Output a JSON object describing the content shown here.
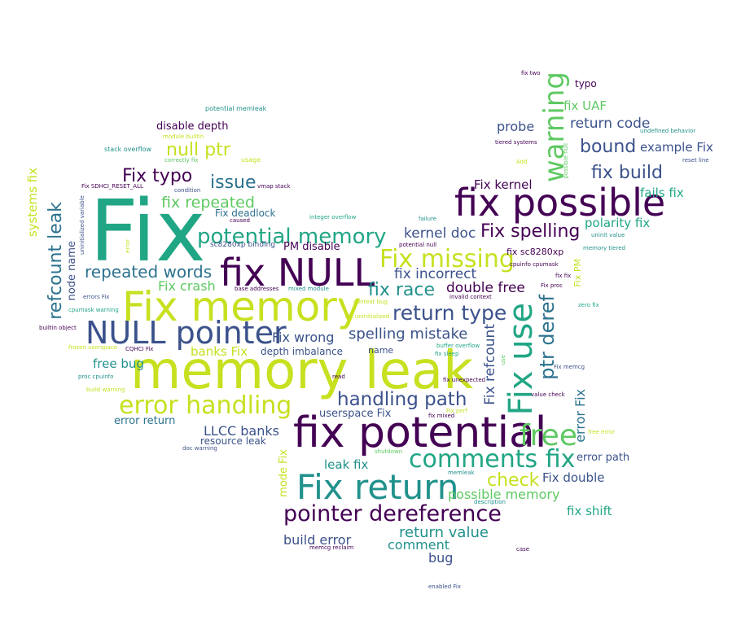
{
  "palette": [
    "#440154",
    "#3b528b",
    "#21918c",
    "#5ec962",
    "#c7e020"
  ],
  "cloud": {
    "words": [
      {
        "text": "Fix",
        "color": "#21a685"
      },
      {
        "text": "memory leak",
        "color": "#c7e020"
      },
      {
        "text": "fix possible",
        "color": "#440154"
      },
      {
        "text": "fix potential",
        "color": "#440154"
      },
      {
        "text": "Fix memory",
        "color": "#c7e020"
      },
      {
        "text": "fix NULL",
        "color": "#440154"
      },
      {
        "text": "NULL pointer",
        "color": "#3b528b"
      },
      {
        "text": "Fix return",
        "color": "#21918c"
      },
      {
        "text": "Fix use",
        "color": "#21a685"
      },
      {
        "text": "warning",
        "color": "#5ec962"
      },
      {
        "text": "error handling",
        "color": "#c7e020"
      },
      {
        "text": "pointer dereference",
        "color": "#440154"
      },
      {
        "text": "Fix missing",
        "color": "#c7e020"
      },
      {
        "text": "potential memory",
        "color": "#21a685"
      },
      {
        "text": "comments fix",
        "color": "#21a685"
      },
      {
        "text": "free",
        "color": "#5ec962"
      },
      {
        "text": "return type",
        "color": "#3b528b"
      },
      {
        "text": "handling path",
        "color": "#3b528b"
      },
      {
        "text": "ptr deref",
        "color": "#2c728e"
      },
      {
        "text": "refcount leak",
        "color": "#2c728e"
      },
      {
        "text": "Fix spelling",
        "color": "#440154"
      },
      {
        "text": "fix race",
        "color": "#21918c"
      },
      {
        "text": "repeated words",
        "color": "#2c728e"
      },
      {
        "text": "null ptr",
        "color": "#c7e020"
      },
      {
        "text": "Fix typo",
        "color": "#440154"
      },
      {
        "text": "bound",
        "color": "#3b528b"
      },
      {
        "text": "fix build",
        "color": "#3b528b"
      },
      {
        "text": "issue",
        "color": "#2c728e"
      },
      {
        "text": "fix repeated",
        "color": "#5ec962"
      },
      {
        "text": "check",
        "color": "#c7e020"
      },
      {
        "text": "spelling mistake",
        "color": "#3b528b"
      },
      {
        "text": "double free",
        "color": "#440154"
      },
      {
        "text": "fix incorrect",
        "color": "#3b528b"
      },
      {
        "text": "kernel doc",
        "color": "#3b528b"
      },
      {
        "text": "Fix refcount",
        "color": "#3b528b"
      },
      {
        "text": "error Fix",
        "color": "#2c728e"
      },
      {
        "text": "return value",
        "color": "#21918c"
      },
      {
        "text": "return code",
        "color": "#3b528b"
      },
      {
        "text": "example Fix",
        "color": "#3b528b"
      },
      {
        "text": "Fix crash",
        "color": "#5ec962"
      },
      {
        "text": "Fix wrong",
        "color": "#3b528b"
      },
      {
        "text": "probe",
        "color": "#3b528b"
      },
      {
        "text": "fix UAF",
        "color": "#5ec962"
      },
      {
        "text": "Fix kernel",
        "color": "#440154"
      },
      {
        "text": "fails fix",
        "color": "#21a685"
      },
      {
        "text": "polarity fix",
        "color": "#21a685"
      },
      {
        "text": "Fix double",
        "color": "#3b528b"
      },
      {
        "text": "possible memory",
        "color": "#5ec962"
      },
      {
        "text": "build error",
        "color": "#3b528b"
      },
      {
        "text": "comment",
        "color": "#21918c"
      },
      {
        "text": "bug",
        "color": "#3b528b"
      },
      {
        "text": "fix shift",
        "color": "#21a685"
      },
      {
        "text": "LLCC banks",
        "color": "#3b528b"
      },
      {
        "text": "free bug",
        "color": "#21918c"
      },
      {
        "text": "banks Fix",
        "color": "#c7e020"
      },
      {
        "text": "disable depth",
        "color": "#440154"
      },
      {
        "text": "leak fix",
        "color": "#21918c"
      },
      {
        "text": "userspace Fix",
        "color": "#3b528b"
      },
      {
        "text": "error return",
        "color": "#2c728e"
      },
      {
        "text": "error path",
        "color": "#3b528b"
      },
      {
        "text": "typo",
        "color": "#440154"
      },
      {
        "text": "systems fix",
        "color": "#c7e020"
      },
      {
        "text": "node name",
        "color": "#3b528b"
      },
      {
        "text": "mode Fix",
        "color": "#c7e020"
      },
      {
        "text": "PM disable",
        "color": "#440154"
      },
      {
        "text": "depth imbalance",
        "color": "#3b528b"
      },
      {
        "text": "Fix deadlock",
        "color": "#2c728e"
      },
      {
        "text": "resource leak",
        "color": "#3b528b"
      },
      {
        "text": "fix sc8280xp",
        "color": "#440154"
      },
      {
        "text": "name",
        "color": "#3b528b"
      },
      {
        "text": "Fix PM",
        "color": "#c7e020"
      },
      {
        "text": "potential memleak",
        "color": "#21918c"
      },
      {
        "text": "module builtin",
        "color": "#c7e020"
      },
      {
        "text": "stack overflow",
        "color": "#21918c"
      },
      {
        "text": "correctly fix",
        "color": "#5ec962"
      },
      {
        "text": "usage",
        "color": "#c7e020"
      },
      {
        "text": "condition",
        "color": "#3b528b"
      },
      {
        "text": "vmap stack",
        "color": "#440154"
      },
      {
        "text": "Fix SDHCI_RESET_ALL",
        "color": "#440154"
      },
      {
        "text": "uninitialized variable",
        "color": "#3b528b"
      },
      {
        "text": "caused",
        "color": "#440154"
      },
      {
        "text": "integer overflow",
        "color": "#21a685"
      },
      {
        "text": "failure",
        "color": "#21918c"
      },
      {
        "text": "potential null",
        "color": "#440154"
      },
      {
        "text": "sc8280xp binding",
        "color": "#3b528b"
      },
      {
        "text": "base addresses",
        "color": "#440154"
      },
      {
        "text": "mixed module",
        "color": "#21918c"
      },
      {
        "text": "errors Fix",
        "color": "#3b528b"
      },
      {
        "text": "cpumask warning",
        "color": "#21a685"
      },
      {
        "text": "builtin object",
        "color": "#440154"
      },
      {
        "text": "error",
        "color": "#c7e020"
      },
      {
        "text": "context bug",
        "color": "#c7e020"
      },
      {
        "text": "Fix uninitialized",
        "color": "#c7e020"
      },
      {
        "text": "invalid context",
        "color": "#440154"
      },
      {
        "text": "frozen userspace",
        "color": "#c7e020"
      },
      {
        "text": "CQHCI Fix",
        "color": "#440154"
      },
      {
        "text": "buffer overflow",
        "color": "#21a685"
      },
      {
        "text": "fix sleep",
        "color": "#21a685"
      },
      {
        "text": "use",
        "color": "#5ec962"
      },
      {
        "text": "proc cpuinfo",
        "color": "#21918c"
      },
      {
        "text": "build warning",
        "color": "#c7e020"
      },
      {
        "text": "read",
        "color": "#440154"
      },
      {
        "text": "fix unexpected",
        "color": "#440154"
      },
      {
        "text": "Fix perf",
        "color": "#c7e020"
      },
      {
        "text": "fix mixed",
        "color": "#440154"
      },
      {
        "text": "doc warning",
        "color": "#3b528b"
      },
      {
        "text": "shutdown",
        "color": "#5ec962"
      },
      {
        "text": "memleak",
        "color": "#21918c"
      },
      {
        "text": "description",
        "color": "#21918c"
      },
      {
        "text": "memcg reclaim",
        "color": "#440154"
      },
      {
        "text": "case",
        "color": "#440154"
      },
      {
        "text": "enabled Fix",
        "color": "#3b528b"
      },
      {
        "text": "fix two",
        "color": "#440154"
      },
      {
        "text": "undefined behavior",
        "color": "#21918c"
      },
      {
        "text": "reset line",
        "color": "#3b528b"
      },
      {
        "text": "tiered systems",
        "color": "#440154"
      },
      {
        "text": "Add",
        "color": "#c7e020"
      },
      {
        "text": "possible null",
        "color": "#5ec962"
      },
      {
        "text": "uninit value",
        "color": "#21918c"
      },
      {
        "text": "memory tiered",
        "color": "#21918c"
      },
      {
        "text": "cpuinfo cpumask",
        "color": "#440154"
      },
      {
        "text": "fix fix",
        "color": "#440154"
      },
      {
        "text": "Fix proc",
        "color": "#440154"
      },
      {
        "text": "zero fix",
        "color": "#21a685"
      },
      {
        "text": "Fix memcg",
        "color": "#3b528b"
      },
      {
        "text": "value check",
        "color": "#440154"
      },
      {
        "text": "free error",
        "color": "#c7e020"
      }
    ]
  }
}
